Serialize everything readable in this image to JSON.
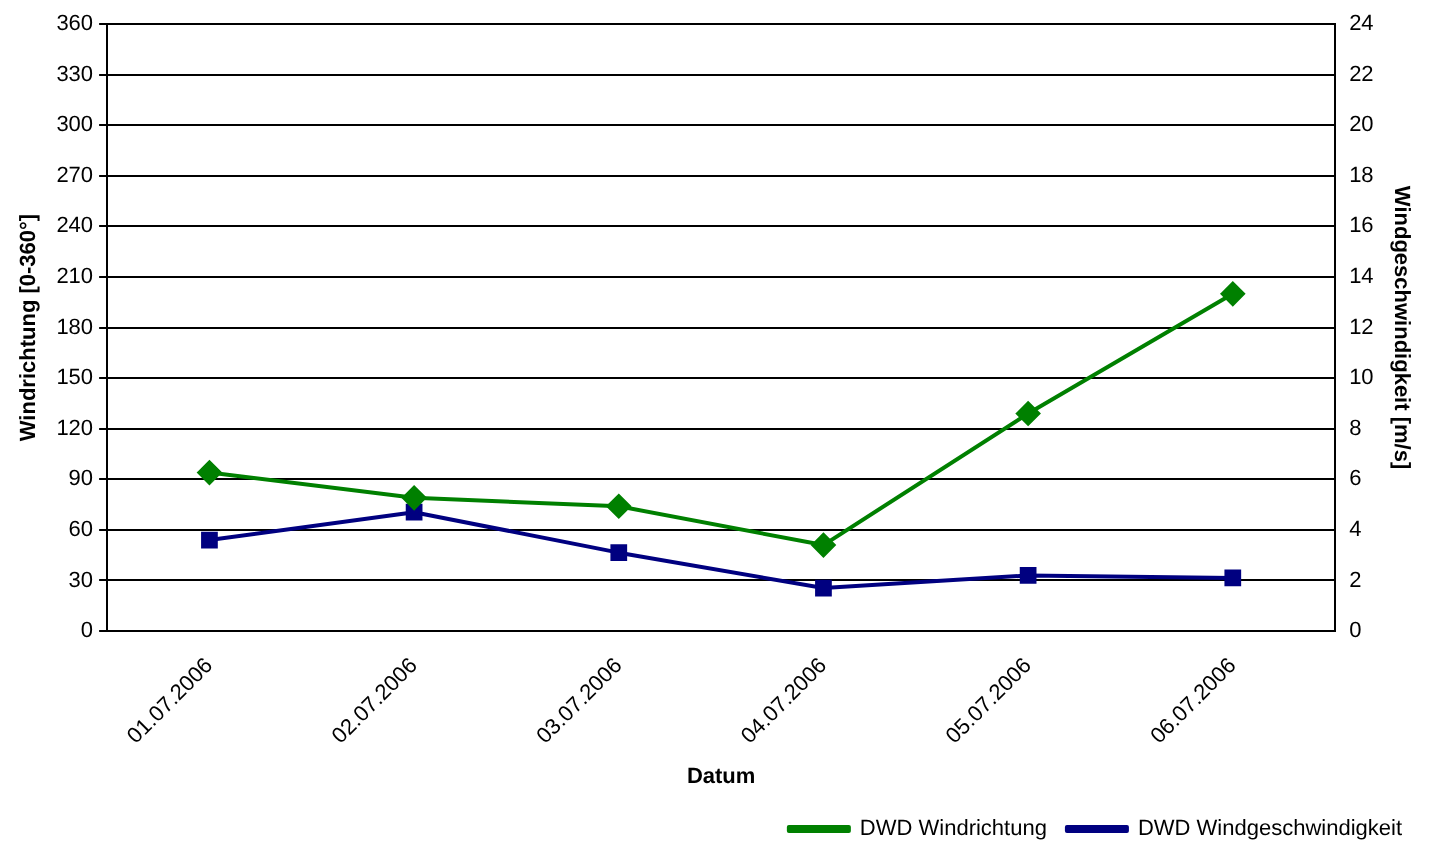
{
  "chart_data": {
    "type": "line",
    "xlabel": "Datum",
    "ylabel": "Windrichtung [0-360°]",
    "y2label": "Windgeschwindigkeit [m/s]",
    "categories": [
      "01.07.2006",
      "02.07.2006",
      "03.07.2006",
      "04.07.2006",
      "05.07.2006",
      "06.07.2006"
    ],
    "series": [
      {
        "name": "DWD Windrichtung",
        "color": "#008000",
        "marker": "diamond",
        "values": [
          94,
          79,
          74,
          51,
          129,
          200
        ]
      },
      {
        "name": "DWD Windgeschwindigkeit",
        "color": "#000080",
        "marker": "square",
        "axis": "y2",
        "values": [
          3.6,
          4.7,
          3.1,
          1.7,
          2.2,
          2.1
        ]
      }
    ],
    "ylim": [
      0,
      360
    ],
    "yticks": [
      0,
      30,
      60,
      90,
      120,
      150,
      180,
      210,
      240,
      270,
      300,
      330,
      360
    ],
    "y2lim": [
      0,
      24
    ],
    "y2ticks": [
      0,
      2,
      4,
      6,
      8,
      10,
      12,
      14,
      16,
      18,
      20,
      22,
      24
    ],
    "grid": "y",
    "legend": "bottom right"
  }
}
